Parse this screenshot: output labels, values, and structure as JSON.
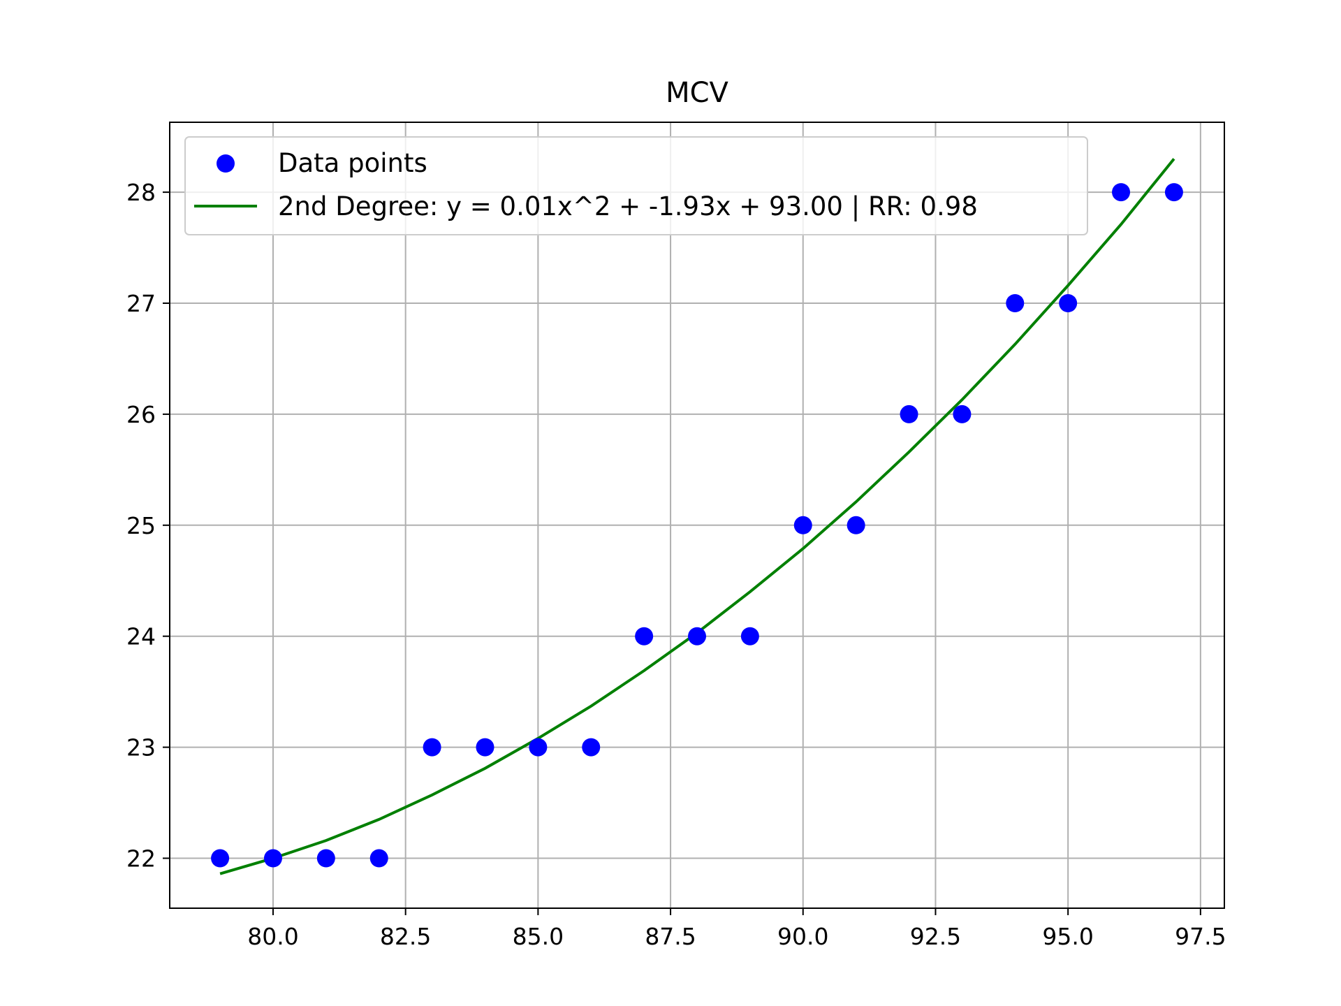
{
  "chart_data": {
    "type": "scatter",
    "title": "MCV",
    "xlabel": "",
    "ylabel": "",
    "xlim": [
      78.05,
      97.95
    ],
    "ylim": [
      21.55,
      28.63
    ],
    "x_ticks": [
      80.0,
      82.5,
      85.0,
      87.5,
      90.0,
      92.5,
      95.0,
      97.5
    ],
    "x_tick_labels": [
      "80.0",
      "82.5",
      "85.0",
      "87.5",
      "90.0",
      "92.5",
      "95.0",
      "97.5"
    ],
    "y_ticks": [
      22,
      23,
      24,
      25,
      26,
      27,
      28
    ],
    "y_tick_labels": [
      "22",
      "23",
      "24",
      "25",
      "26",
      "27",
      "28"
    ],
    "grid": true,
    "legend_position": "top-left",
    "series": [
      {
        "name": "Data points",
        "kind": "scatter",
        "color": "#0000ff",
        "x": [
          79,
          80,
          81,
          82,
          83,
          84,
          85,
          86,
          87,
          88,
          89,
          90,
          91,
          92,
          93,
          94,
          95,
          96,
          97
        ],
        "y": [
          22,
          22,
          22,
          22,
          23,
          23,
          23,
          23,
          24,
          24,
          24,
          25,
          25,
          26,
          26,
          27,
          27,
          28,
          28
        ]
      },
      {
        "name": "2nd Degree: y = 0.01x^2 + -1.93x + 93.00 | RR: 0.98",
        "kind": "line",
        "color": "#008000",
        "x": [
          79,
          80,
          81,
          82,
          83,
          84,
          85,
          86,
          87,
          88,
          89,
          90,
          91,
          92,
          93,
          94,
          95,
          96,
          97
        ],
        "y": [
          21.86,
          22.0,
          22.16,
          22.35,
          22.57,
          22.81,
          23.08,
          23.37,
          23.69,
          24.03,
          24.4,
          24.79,
          25.21,
          25.66,
          26.13,
          26.63,
          27.16,
          27.71,
          28.3
        ]
      }
    ]
  }
}
